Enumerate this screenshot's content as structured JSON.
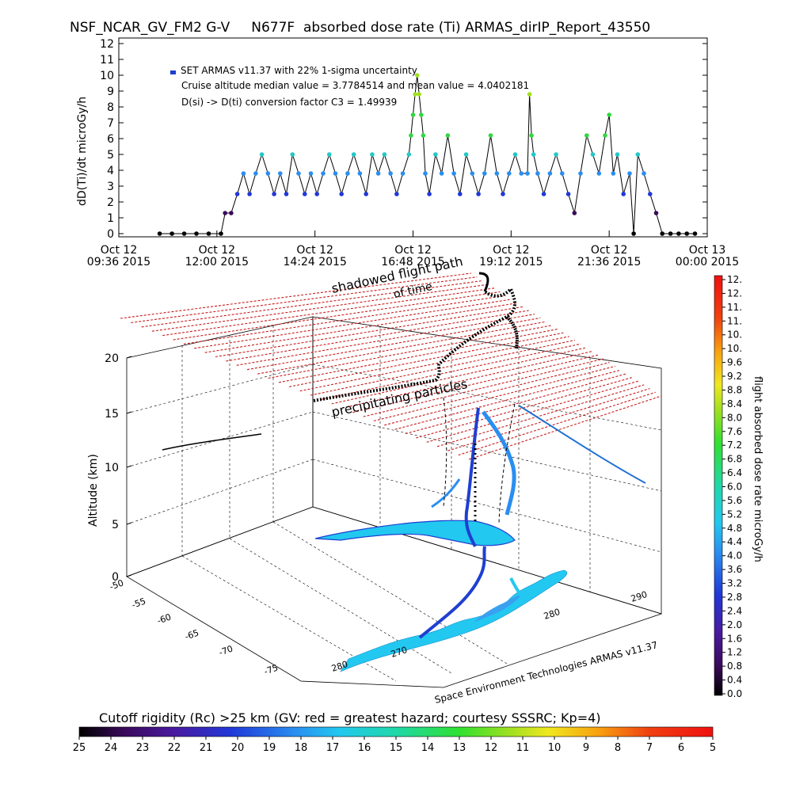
{
  "header": {
    "title": "NSF_NCAR_GV_FM2 G-V     N677F  absorbed dose rate (Ti) ARMAS_dirIP_Report_43550"
  },
  "top_chart": {
    "ylabel": "dD(Ti)/dt microGy/h",
    "legend_line1": "SET ARMAS v11.37 with 22% 1-sigma uncertainty",
    "legend_line2": "Cruise altitude median value = 3.7784514 and mean value = 4.0402181",
    "legend_line3": "D(si) -> D(ti) conversion factor C3 = 1.49939"
  },
  "chart_data": [
    {
      "type": "line",
      "ylabel": "dD(Ti)/dt microGy/h",
      "ylim": [
        0,
        12
      ],
      "yticks": [
        "0",
        "1",
        "2",
        "3",
        "4",
        "5",
        "6",
        "7",
        "8",
        "9",
        "10",
        "11",
        "12"
      ],
      "xticks": [
        {
          "date": "Oct 12",
          "time": "09:36 2015"
        },
        {
          "date": "Oct 12",
          "time": "12:00 2015"
        },
        {
          "date": "Oct 12",
          "time": "14:24 2015"
        },
        {
          "date": "Oct 12",
          "time": "16:48 2015"
        },
        {
          "date": "Oct 12",
          "time": "19:12 2015"
        },
        {
          "date": "Oct 12",
          "time": "21:36 2015"
        },
        {
          "date": "Oct 13",
          "time": "00:00 2015"
        }
      ],
      "x_hours": [
        10.6,
        10.9,
        11.2,
        11.5,
        11.8,
        12.1,
        12.2,
        12.35,
        12.5,
        12.65,
        12.8,
        12.95,
        13.1,
        13.25,
        13.4,
        13.55,
        13.7,
        13.85,
        14.0,
        14.15,
        14.3,
        14.45,
        14.6,
        14.75,
        14.9,
        15.05,
        15.2,
        15.35,
        15.5,
        15.65,
        15.8,
        15.95,
        16.1,
        16.25,
        16.4,
        16.55,
        16.7,
        16.75,
        16.8,
        16.85,
        16.9,
        16.95,
        17.0,
        17.05,
        17.1,
        17.2,
        17.35,
        17.5,
        17.65,
        17.8,
        17.95,
        18.1,
        18.25,
        18.4,
        18.55,
        18.7,
        18.85,
        19.0,
        19.15,
        19.3,
        19.45,
        19.6,
        19.65,
        19.7,
        19.75,
        19.85,
        20.0,
        20.15,
        20.3,
        20.45,
        20.6,
        20.75,
        20.9,
        21.05,
        21.2,
        21.35,
        21.5,
        21.6,
        21.7,
        21.8,
        21.95,
        22.1,
        22.2,
        22.3,
        22.45,
        22.6,
        22.75,
        22.9,
        23.1,
        23.3,
        23.5,
        23.7
      ],
      "y_values": [
        0,
        0,
        0,
        0,
        0,
        0,
        1.3,
        1.3,
        2.5,
        3.8,
        2.5,
        3.8,
        5,
        3.8,
        2.5,
        3.8,
        2.5,
        5,
        3.8,
        2.5,
        3.8,
        2.5,
        3.8,
        5,
        3.8,
        2.5,
        3.8,
        5,
        3.8,
        2.5,
        5,
        3.8,
        5,
        3.8,
        2.5,
        3.8,
        5,
        6.2,
        7.5,
        8.8,
        10,
        8.8,
        7.5,
        6.2,
        3.8,
        2.5,
        5,
        3.8,
        6.2,
        3.8,
        2.5,
        5,
        3.8,
        2.5,
        3.8,
        6.2,
        3.8,
        2.5,
        3.8,
        5,
        3.8,
        3.8,
        8.8,
        6.2,
        5,
        3.8,
        2.5,
        3.8,
        5,
        3.8,
        2.5,
        1.3,
        3.8,
        6.2,
        5,
        3.8,
        6.2,
        7.5,
        3.8,
        5,
        2.5,
        3.8,
        0,
        5,
        3.8,
        2.5,
        1.3,
        0,
        0,
        0,
        0,
        0
      ],
      "title": "",
      "xlabel": ""
    },
    {
      "type": "scatter",
      "ylabel": "Altitude (km)",
      "zticks": [
        "0",
        "5",
        "10",
        "15",
        "20"
      ],
      "latitude_ticks": [
        "-50",
        "-55",
        "-60",
        "-65",
        "-70",
        "-75"
      ],
      "longitude_ticks": [
        "280",
        "270",
        "280",
        "290"
      ],
      "colorbar_label": "flight absorbed dose rate microGy/h",
      "colorbar_ticks": [
        "0.0",
        "0.4",
        "0.8",
        "1.2",
        "1.6",
        "2.0",
        "2.4",
        "2.8",
        "3.2",
        "3.6",
        "4.0",
        "4.4",
        "4.8",
        "5.2",
        "5.6",
        "6.0",
        "6.4",
        "6.8",
        "7.2",
        "7.6",
        "8.0",
        "8.4",
        "8.8",
        "9.2",
        "9.6",
        "10.",
        "10.",
        "11.",
        "11.",
        "12.",
        "12."
      ],
      "annotations": [
        "shadowed flight path",
        "of time",
        "precipitating particles"
      ],
      "footer_credit": "Space Environment Technologies ARMAS v11.37",
      "title": "",
      "xlabel": ""
    }
  ],
  "bottom_colorbar": {
    "title": "Cutoff rigidity (Rc) >25 km (GV: red = greatest hazard; courtesy SSSRC; Kp=4)",
    "ticks": [
      "25",
      "24",
      "23",
      "22",
      "21",
      "20",
      "19",
      "18",
      "17",
      "16",
      "15",
      "14",
      "13",
      "12",
      "11",
      "10",
      "9",
      "8",
      "7",
      "6",
      "5"
    ]
  },
  "colors": {
    "grid_red": "#c81e1e",
    "legend_blue": "#1f3fd0",
    "ocean_cyan": "#22c8f0"
  }
}
